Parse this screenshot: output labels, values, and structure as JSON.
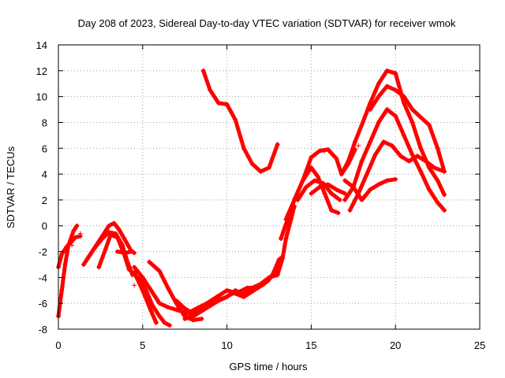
{
  "chart_data": {
    "type": "scatter",
    "title": "Day 208 of 2023, Sidereal Day-to-day VTEC variation (SDTVAR) for receiver wmok",
    "xlabel": "GPS time / hours",
    "ylabel": "SDTVAR / TECUs",
    "xlim": [
      0,
      25
    ],
    "ylim": [
      -8,
      14
    ],
    "xticks": [
      0,
      5,
      10,
      15,
      20,
      25
    ],
    "yticks": [
      -8,
      -6,
      -4,
      -2,
      0,
      2,
      4,
      6,
      8,
      10,
      12,
      14
    ],
    "grid": true,
    "marker": "+",
    "color": "#ff0000",
    "series": [
      {
        "x": [
          0.0,
          0.2,
          0.4,
          0.6,
          0.9,
          1.1
        ],
        "y": [
          -7.0,
          -5.0,
          -3.0,
          -1.5,
          -0.4,
          0.0
        ]
      },
      {
        "x": [
          0.0,
          0.2,
          0.5,
          0.8,
          1.0,
          1.3
        ],
        "y": [
          -3.2,
          -2.2,
          -1.6,
          -1.2,
          -0.9,
          -0.8
        ]
      },
      {
        "x": [
          1.5,
          2.0,
          2.5,
          3.0,
          3.3,
          3.6,
          4.0,
          4.3,
          4.5
        ],
        "y": [
          -3.0,
          -2.0,
          -1.0,
          0.0,
          0.2,
          -0.3,
          -1.2,
          -1.9,
          -2.1
        ]
      },
      {
        "x": [
          1.7,
          2.1,
          2.6,
          3.0,
          3.4,
          3.8,
          4.1,
          4.4
        ],
        "y": [
          -2.6,
          -1.8,
          -1.0,
          -0.5,
          -0.6,
          -1.5,
          -2.8,
          -3.8
        ]
      },
      {
        "x": [
          2.4,
          2.8,
          3.1,
          3.5,
          3.9,
          4.2
        ],
        "y": [
          -3.2,
          -1.8,
          -0.7,
          -0.9,
          -2.2,
          -3.4
        ]
      },
      {
        "x": [
          4.5,
          5.0,
          5.5,
          6.0,
          6.5,
          7.0,
          7.5,
          7.8
        ],
        "y": [
          -3.2,
          -4.0,
          -5.0,
          -6.0,
          -6.3,
          -6.5,
          -6.7,
          -6.8
        ]
      },
      {
        "x": [
          4.8,
          5.2,
          5.6,
          6.0,
          6.3,
          6.6
        ],
        "y": [
          -4.0,
          -5.0,
          -6.2,
          -7.0,
          -7.5,
          -7.7
        ]
      },
      {
        "x": [
          4.5,
          5.0,
          5.5,
          5.8
        ],
        "y": [
          -3.6,
          -5.0,
          -6.6,
          -7.5
        ]
      },
      {
        "x": [
          5.4,
          6.0,
          6.5,
          7.0,
          7.5,
          8.0,
          8.5
        ],
        "y": [
          -2.8,
          -3.5,
          -4.8,
          -6.0,
          -7.0,
          -7.3,
          -7.2
        ]
      },
      {
        "x": [
          7.5,
          8.0,
          8.5,
          9.0,
          9.5,
          10.0,
          10.5,
          11.0,
          11.5,
          12.0,
          12.5,
          13.0,
          13.3,
          13.5,
          13.8,
          14.0
        ],
        "y": [
          -7.2,
          -7.0,
          -6.6,
          -6.2,
          -5.8,
          -5.5,
          -5.0,
          -5.3,
          -4.8,
          -4.5,
          -4.0,
          -3.8,
          -2.5,
          -1.0,
          0.5,
          1.5
        ]
      },
      {
        "x": [
          7.6,
          8.2,
          8.8,
          9.4,
          10.0,
          10.6,
          11.2,
          11.8,
          12.4,
          12.8,
          13.2
        ],
        "y": [
          -6.8,
          -6.4,
          -6.0,
          -5.5,
          -5.0,
          -5.2,
          -4.8,
          -4.8,
          -4.3,
          -3.7,
          -2.5
        ]
      },
      {
        "x": [
          7.0,
          7.5,
          8.0,
          8.6,
          9.2,
          9.8,
          10.4,
          11.0,
          11.6,
          12.2,
          12.7,
          13.1
        ],
        "y": [
          -5.8,
          -6.4,
          -6.8,
          -6.2,
          -5.8,
          -5.6,
          -5.2,
          -5.5,
          -5.0,
          -4.5,
          -3.8,
          -2.6
        ]
      },
      {
        "x": [
          8.6,
          9.0,
          9.5,
          10.0,
          10.5,
          11.0,
          11.5,
          12.0,
          12.5,
          13.0
        ],
        "y": [
          12.0,
          10.5,
          9.5,
          9.4,
          8.2,
          6.0,
          4.8,
          4.2,
          4.5,
          6.3
        ]
      },
      {
        "x": [
          13.2,
          13.6,
          14.0,
          14.5,
          15.0,
          15.5,
          16.0,
          16.5,
          16.8,
          17.2,
          17.6
        ],
        "y": [
          -1.0,
          0.5,
          2.0,
          3.5,
          5.3,
          5.8,
          5.9,
          5.2,
          4.0,
          4.8,
          5.9
        ]
      },
      {
        "x": [
          13.5,
          14.0,
          14.5,
          15.0,
          15.4,
          15.8,
          16.2,
          16.6
        ],
        "y": [
          0.5,
          2.0,
          3.5,
          4.5,
          3.8,
          2.5,
          1.2,
          1.0
        ]
      },
      {
        "x": [
          14.2,
          14.7,
          15.2,
          15.7,
          16.2,
          16.7
        ],
        "y": [
          2.0,
          3.0,
          3.5,
          3.3,
          2.5,
          2.0
        ]
      },
      {
        "x": [
          15.0,
          15.5,
          16.0,
          16.5,
          17.0
        ],
        "y": [
          2.5,
          3.0,
          3.2,
          2.8,
          2.5
        ]
      },
      {
        "x": [
          16.8,
          17.2,
          17.6,
          18.0,
          18.5,
          19.0,
          19.5,
          20.0,
          20.5,
          21.0,
          21.5,
          22.0,
          22.5,
          22.9
        ],
        "y": [
          4.0,
          5.0,
          6.5,
          7.8,
          9.5,
          11.0,
          12.0,
          11.8,
          9.5,
          8.0,
          6.0,
          4.5,
          3.5,
          2.4
        ]
      },
      {
        "x": [
          17.0,
          17.5,
          18.0,
          18.5,
          19.0,
          19.5,
          20.0,
          20.5,
          21.0,
          21.5,
          22.0,
          22.5,
          22.9
        ],
        "y": [
          2.0,
          3.0,
          5.0,
          6.5,
          8.0,
          9.0,
          8.5,
          7.0,
          5.5,
          4.2,
          2.8,
          1.8,
          1.2
        ]
      },
      {
        "x": [
          17.3,
          17.8,
          18.3,
          18.8,
          19.3,
          19.8,
          20.3,
          20.8,
          21.3,
          21.8,
          22.3,
          22.9
        ],
        "y": [
          1.2,
          2.5,
          4.0,
          5.5,
          6.5,
          6.2,
          5.4,
          5.0,
          5.4,
          5.0,
          4.5,
          4.2
        ]
      },
      {
        "x": [
          18.5,
          19.0,
          19.5,
          20.0,
          20.5,
          21.0,
          21.5,
          22.0,
          22.5,
          22.9
        ],
        "y": [
          9.0,
          10.0,
          10.8,
          10.5,
          10.0,
          9.0,
          8.4,
          7.8,
          6.0,
          4.2
        ]
      },
      {
        "x": [
          17.0,
          17.5,
          18.0,
          18.5,
          19.0,
          19.5,
          20.0
        ],
        "y": [
          3.5,
          3.0,
          2.0,
          2.8,
          3.2,
          3.5,
          3.6
        ]
      },
      {
        "x": [
          3.5,
          4.0,
          4.3
        ],
        "y": [
          -2.0,
          -2.1,
          -2.0
        ]
      }
    ],
    "stray_points": [
      {
        "x": 4.5,
        "y": -4.6
      },
      {
        "x": 1.3,
        "y": -0.6
      },
      {
        "x": 0.8,
        "y": -1.5
      },
      {
        "x": 15.8,
        "y": 5.8
      },
      {
        "x": 17.8,
        "y": 6.2
      }
    ]
  }
}
